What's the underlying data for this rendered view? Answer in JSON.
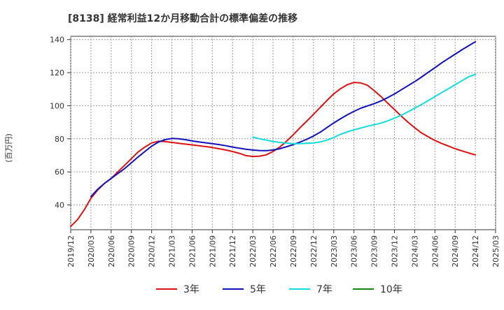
{
  "chart_data": {
    "type": "line",
    "title": "[8138]  経常利益12か月移動合計の標準偏差の推移",
    "ylabel": "(百万円)",
    "xlabel": "",
    "ylim": [
      25,
      142
    ],
    "yticks": [
      40,
      60,
      80,
      100,
      120,
      140
    ],
    "xticks": [
      "2019/12",
      "2020/03",
      "2020/06",
      "2020/09",
      "2020/12",
      "2021/03",
      "2021/06",
      "2021/09",
      "2021/12",
      "2022/03",
      "2022/06",
      "2022/09",
      "2022/12",
      "2023/03",
      "2023/06",
      "2023/09",
      "2023/12",
      "2024/03",
      "2024/06",
      "2024/09",
      "2024/12",
      "2025/03"
    ],
    "grid": true,
    "legend_position": "bottom",
    "series": [
      {
        "name": "3年",
        "color": "#dd1111",
        "x": [
          "2019/12",
          "2020/01",
          "2020/02",
          "2020/03",
          "2020/04",
          "2020/05",
          "2020/06",
          "2020/07",
          "2020/08",
          "2020/09",
          "2020/10",
          "2020/11",
          "2020/12",
          "2021/01",
          "2021/02",
          "2021/03",
          "2021/04",
          "2021/05",
          "2021/06",
          "2021/07",
          "2021/08",
          "2021/09",
          "2021/10",
          "2021/11",
          "2021/12",
          "2022/01",
          "2022/02",
          "2022/03",
          "2022/04",
          "2022/05",
          "2022/06",
          "2022/07",
          "2022/08",
          "2022/09",
          "2022/10",
          "2022/11",
          "2022/12",
          "2023/01",
          "2023/02",
          "2023/03",
          "2023/04",
          "2023/05",
          "2023/06",
          "2023/07",
          "2023/08",
          "2023/09",
          "2023/10",
          "2023/11",
          "2023/12",
          "2024/01",
          "2024/02",
          "2024/03",
          "2024/04",
          "2024/05",
          "2024/06",
          "2024/07",
          "2024/08",
          "2024/09",
          "2024/10",
          "2024/11",
          "2024/12"
        ],
        "values": [
          27,
          31,
          37,
          44,
          49,
          53,
          56,
          60,
          64,
          68,
          72,
          75,
          77.5,
          78.5,
          78.3,
          77.8,
          77.3,
          76.8,
          76.3,
          75.8,
          75.3,
          74.7,
          74,
          73.2,
          72.3,
          71.2,
          69.8,
          69.3,
          69.5,
          70.3,
          72.3,
          75,
          78.5,
          82.5,
          86.7,
          90.7,
          94.8,
          99,
          103.2,
          107.2,
          110.3,
          112.7,
          114.1,
          113.8,
          112.4,
          109.1,
          105.6,
          101.6,
          97.7,
          93.8,
          90.1,
          86.7,
          83.6,
          81.2,
          79,
          77.2,
          75.6,
          74,
          72.7,
          71.4,
          70.3
        ]
      },
      {
        "name": "5年",
        "color": "#1111bb",
        "x": [
          "2020/03",
          "2020/04",
          "2020/05",
          "2020/06",
          "2020/07",
          "2020/08",
          "2020/09",
          "2020/10",
          "2020/11",
          "2020/12",
          "2021/01",
          "2021/02",
          "2021/03",
          "2021/04",
          "2021/05",
          "2021/06",
          "2021/07",
          "2021/08",
          "2021/09",
          "2021/10",
          "2021/11",
          "2021/12",
          "2022/01",
          "2022/02",
          "2022/03",
          "2022/04",
          "2022/05",
          "2022/06",
          "2022/07",
          "2022/08",
          "2022/09",
          "2022/10",
          "2022/11",
          "2022/12",
          "2023/01",
          "2023/02",
          "2023/03",
          "2023/04",
          "2023/05",
          "2023/06",
          "2023/07",
          "2023/08",
          "2023/09",
          "2023/10",
          "2023/11",
          "2023/12",
          "2024/01",
          "2024/02",
          "2024/03",
          "2024/04",
          "2024/05",
          "2024/06",
          "2024/07",
          "2024/08",
          "2024/09",
          "2024/10",
          "2024/11",
          "2024/12"
        ],
        "values": [
          45,
          49.5,
          53,
          56,
          59,
          62,
          65.5,
          69,
          72.3,
          75.5,
          78,
          79.5,
          80.2,
          80,
          79.5,
          78.7,
          78.1,
          77.6,
          77.1,
          76.5,
          75.8,
          75,
          74.3,
          73.7,
          73.2,
          72.9,
          72.8,
          73.2,
          74,
          75.2,
          76.5,
          78,
          79.7,
          81.7,
          84,
          86.8,
          89.6,
          92.1,
          94.5,
          96.6,
          98.5,
          99.9,
          101.3,
          102.9,
          104.9,
          107.1,
          109.6,
          112.1,
          114.6,
          117.3,
          120.2,
          123,
          125.9,
          128.6,
          131.2,
          133.8,
          136.3,
          138.7
        ]
      },
      {
        "name": "7年",
        "color": "#11dddd",
        "x": [
          "2022/03",
          "2022/04",
          "2022/05",
          "2022/06",
          "2022/07",
          "2022/08",
          "2022/09",
          "2022/10",
          "2022/11",
          "2022/12",
          "2023/01",
          "2023/02",
          "2023/03",
          "2023/04",
          "2023/05",
          "2023/06",
          "2023/07",
          "2023/08",
          "2023/09",
          "2023/10",
          "2023/11",
          "2023/12",
          "2024/01",
          "2024/02",
          "2024/03",
          "2024/04",
          "2024/05",
          "2024/06",
          "2024/07",
          "2024/08",
          "2024/09",
          "2024/10",
          "2024/11",
          "2024/12"
        ],
        "values": [
          81,
          80,
          79.2,
          78.4,
          77.8,
          77.4,
          77,
          77.1,
          77.3,
          77.5,
          78.1,
          79.2,
          80.8,
          82.7,
          84.2,
          85.4,
          86.5,
          87.6,
          88.5,
          89.5,
          90.8,
          92.5,
          94.2,
          96.3,
          98.5,
          100.7,
          103.1,
          105.5,
          107.9,
          110.3,
          112.7,
          115.1,
          117.5,
          119
        ]
      },
      {
        "name": "10年",
        "color": "#118811",
        "x": [],
        "values": []
      }
    ]
  }
}
